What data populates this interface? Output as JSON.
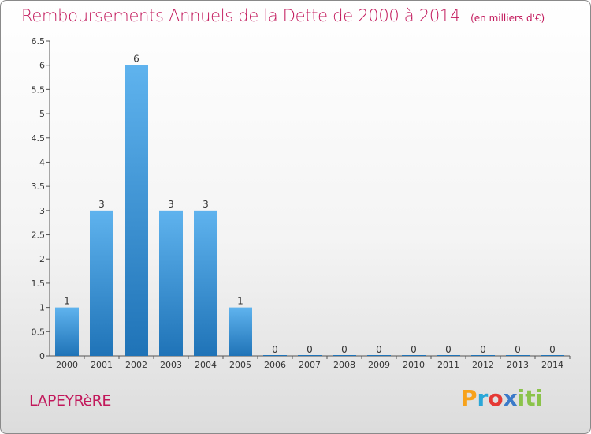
{
  "chart_data": {
    "type": "bar",
    "title": "Remboursements Annuels de la Dette de 2000 à 2014",
    "unit_label": "(en milliers d'€)",
    "categories": [
      "2000",
      "2001",
      "2002",
      "2003",
      "2004",
      "2005",
      "2006",
      "2007",
      "2008",
      "2009",
      "2010",
      "2011",
      "2012",
      "2013",
      "2014"
    ],
    "values": [
      1,
      3,
      6,
      3,
      3,
      1,
      0,
      0,
      0,
      0,
      0,
      0,
      0,
      0,
      0
    ],
    "ylim": [
      0,
      6.5
    ],
    "yticks": [
      "0",
      "0.5",
      "1",
      "1.5",
      "2",
      "2.5",
      "3",
      "3.5",
      "4",
      "4.5",
      "5",
      "5.5",
      "6",
      "6.5"
    ],
    "bar_color": "#3d9be0",
    "grid": false,
    "xlabel": "",
    "ylabel": ""
  },
  "footer": {
    "commune": "LAPEYRèRE",
    "logo_letters": [
      "P",
      "r",
      "o",
      "x",
      "iti"
    ]
  },
  "colors": {
    "title": "#c2185b",
    "bar_top": "#5fb3ee",
    "bar_bottom": "#1f73b7"
  }
}
